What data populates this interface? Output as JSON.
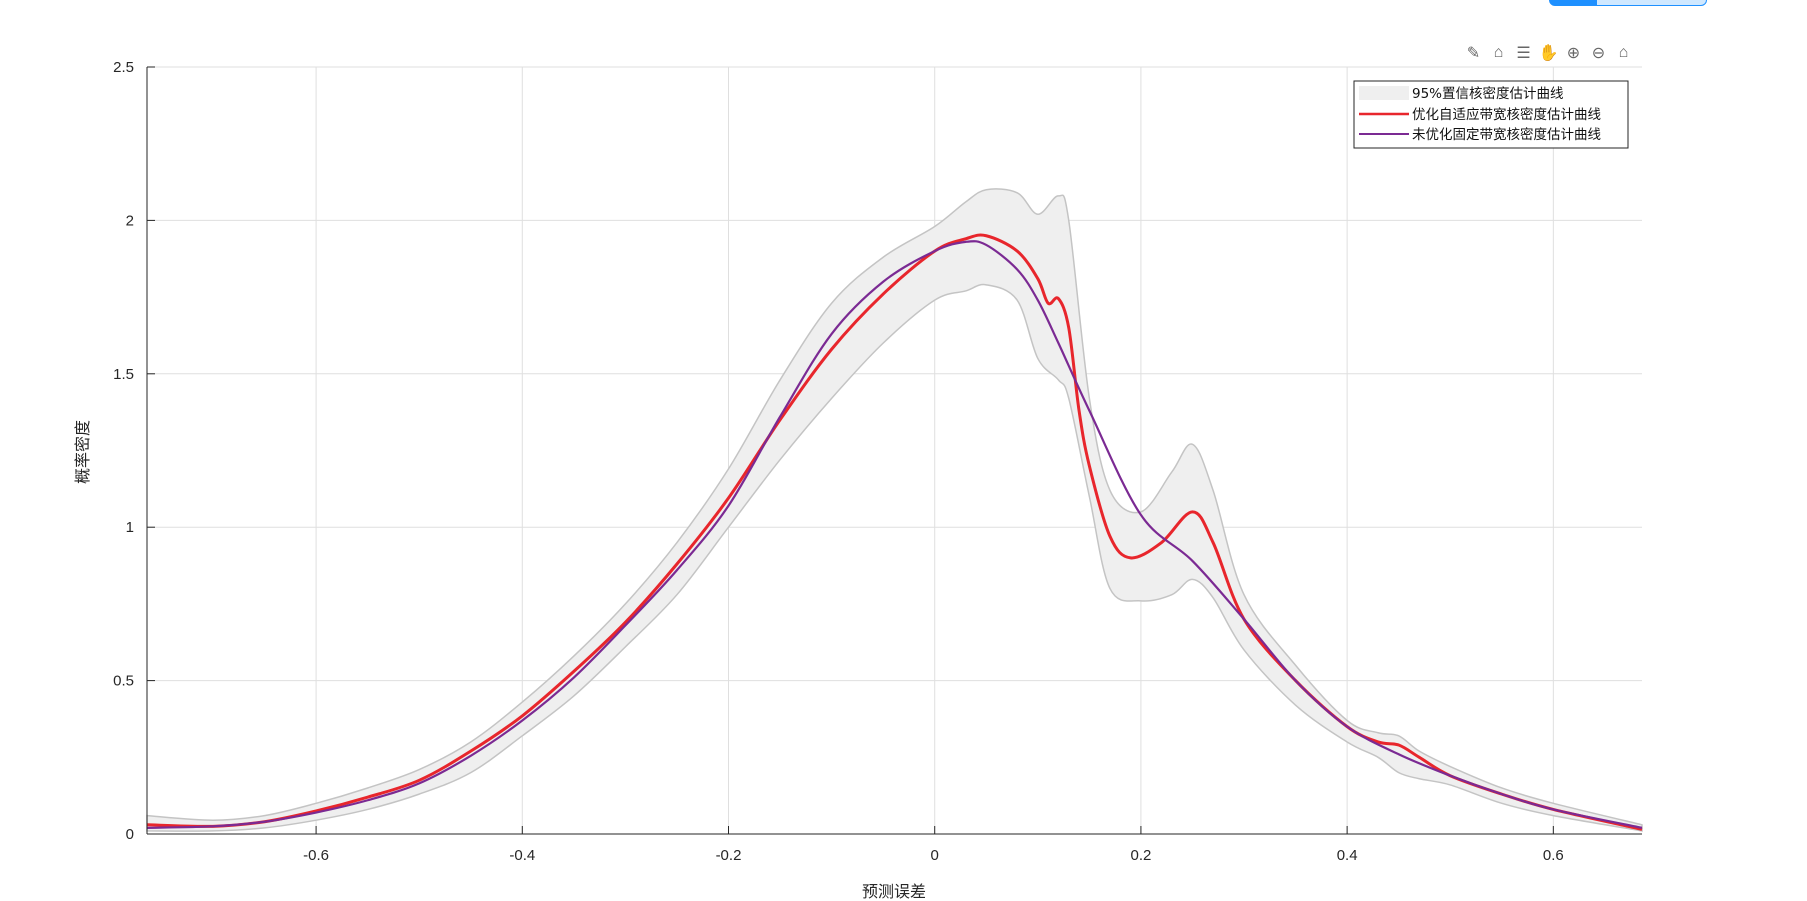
{
  "toolbar": {
    "icons": [
      "brush-edit-icon",
      "data-tips-icon",
      "legend-export-icon",
      "pan-hand-icon",
      "zoom-in-icon",
      "zoom-out-icon",
      "home-restore-icon"
    ]
  },
  "chart_data": {
    "type": "line",
    "title": "",
    "xlabel": "预测误差",
    "ylabel": "概率密度",
    "xlim": [
      -0.764,
      0.686
    ],
    "ylim": [
      0,
      2.5
    ],
    "xticks": [
      -0.6,
      -0.4,
      -0.2,
      0,
      0.2,
      0.4,
      0.6
    ],
    "xtick_labels": [
      "-0.6",
      "-0.4",
      "-0.2",
      "0",
      "0.2",
      "0.4",
      "0.6"
    ],
    "yticks": [
      0,
      0.5,
      1,
      1.5,
      2,
      2.5
    ],
    "ytick_labels": [
      "0",
      "0.5",
      "1",
      "1.5",
      "2",
      "2.5"
    ],
    "grid": true,
    "legend_position": "top-right",
    "band": {
      "name": "95%置信核密度估计曲线",
      "color": "#efefef",
      "edge_color": "#c4c4c4",
      "x": [
        -0.764,
        -0.7,
        -0.65,
        -0.6,
        -0.55,
        -0.5,
        -0.45,
        -0.4,
        -0.35,
        -0.3,
        -0.25,
        -0.2,
        -0.15,
        -0.1,
        -0.05,
        0,
        0.03,
        0.05,
        0.08,
        0.1,
        0.12,
        0.13,
        0.15,
        0.17,
        0.2,
        0.23,
        0.25,
        0.27,
        0.3,
        0.35,
        0.4,
        0.43,
        0.45,
        0.47,
        0.5,
        0.55,
        0.6,
        0.686
      ],
      "upper": [
        0.06,
        0.045,
        0.06,
        0.1,
        0.15,
        0.21,
        0.3,
        0.43,
        0.58,
        0.75,
        0.95,
        1.19,
        1.48,
        1.73,
        1.88,
        1.98,
        2.06,
        2.1,
        2.09,
        2.02,
        2.08,
        2.0,
        1.42,
        1.12,
        1.05,
        1.18,
        1.27,
        1.12,
        0.78,
        0.55,
        0.37,
        0.33,
        0.32,
        0.27,
        0.22,
        0.15,
        0.1,
        0.03
      ],
      "lower": [
        0.01,
        0.01,
        0.02,
        0.045,
        0.08,
        0.13,
        0.2,
        0.32,
        0.45,
        0.61,
        0.78,
        1.0,
        1.22,
        1.42,
        1.6,
        1.74,
        1.77,
        1.79,
        1.74,
        1.55,
        1.48,
        1.42,
        1.1,
        0.8,
        0.76,
        0.78,
        0.83,
        0.77,
        0.6,
        0.42,
        0.3,
        0.25,
        0.2,
        0.18,
        0.16,
        0.1,
        0.06,
        0.01
      ]
    },
    "series": [
      {
        "name": "优化自适应带宽核密度估计曲线",
        "color": "#e8262c",
        "x": [
          -0.764,
          -0.7,
          -0.65,
          -0.6,
          -0.55,
          -0.5,
          -0.45,
          -0.4,
          -0.35,
          -0.3,
          -0.25,
          -0.2,
          -0.15,
          -0.1,
          -0.05,
          0,
          0.03,
          0.05,
          0.08,
          0.1,
          0.11,
          0.12,
          0.13,
          0.14,
          0.15,
          0.17,
          0.19,
          0.22,
          0.25,
          0.27,
          0.3,
          0.35,
          0.4,
          0.43,
          0.45,
          0.47,
          0.5,
          0.55,
          0.6,
          0.686
        ],
        "y": [
          0.03,
          0.025,
          0.04,
          0.075,
          0.12,
          0.175,
          0.27,
          0.385,
          0.53,
          0.69,
          0.88,
          1.095,
          1.35,
          1.58,
          1.76,
          1.9,
          1.94,
          1.95,
          1.9,
          1.81,
          1.73,
          1.745,
          1.65,
          1.38,
          1.2,
          0.97,
          0.9,
          0.95,
          1.05,
          0.95,
          0.7,
          0.5,
          0.35,
          0.3,
          0.29,
          0.25,
          0.19,
          0.13,
          0.08,
          0.015
        ]
      },
      {
        "name": "未优化固定带宽核密度估计曲线",
        "color": "#7b2a93",
        "x": [
          -0.764,
          -0.7,
          -0.65,
          -0.6,
          -0.55,
          -0.5,
          -0.45,
          -0.4,
          -0.35,
          -0.3,
          -0.25,
          -0.2,
          -0.15,
          -0.1,
          -0.05,
          0,
          0.03,
          0.05,
          0.08,
          0.1,
          0.12,
          0.15,
          0.2,
          0.25,
          0.3,
          0.35,
          0.4,
          0.45,
          0.5,
          0.55,
          0.6,
          0.686
        ],
        "y": [
          0.02,
          0.025,
          0.04,
          0.07,
          0.11,
          0.165,
          0.255,
          0.37,
          0.51,
          0.68,
          0.86,
          1.07,
          1.36,
          1.63,
          1.8,
          1.9,
          1.93,
          1.92,
          1.84,
          1.74,
          1.6,
          1.38,
          1.04,
          0.89,
          0.7,
          0.5,
          0.35,
          0.26,
          0.19,
          0.13,
          0.08,
          0.02
        ]
      }
    ]
  }
}
